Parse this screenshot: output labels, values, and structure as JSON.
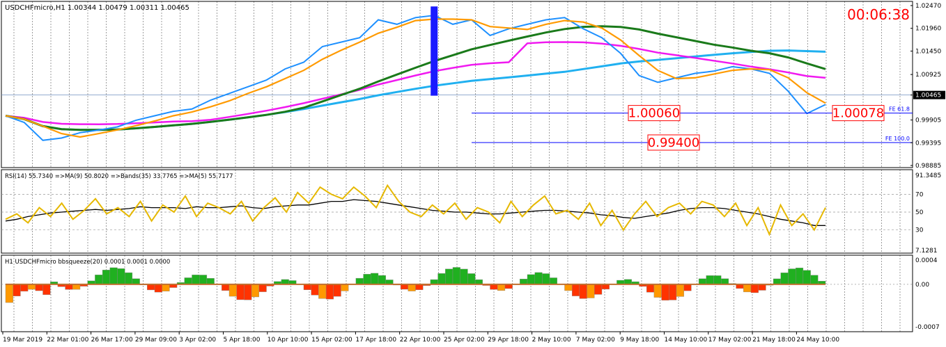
{
  "chart_data": [
    {
      "type": "line",
      "title": "USDCHFmicro,H1  1.00344 1.00479 1.00311 1.00465",
      "timer": "00:06:38",
      "colors": {
        "timer": "#ff0000",
        "price": "#1e90ff",
        "ma_long": "#1a7a1a",
        "ma_mid": "#ee00ee",
        "ma_fast": "#20b0f0",
        "orange": "#ff9a00",
        "fib": "#0000ff"
      },
      "x_labels": [
        "19 Mar 2019",
        "22 Mar 01:00",
        "26 Mar 17:00",
        "29 Mar 09:00",
        "3 Apr 02:00",
        "5 Apr 18:00",
        "10 Apr 10:00",
        "15 Apr 02:00",
        "17 Apr 18:00",
        "22 Apr 10:00",
        "25 Apr 02:00",
        "29 Apr 18:00",
        "2 May 10:00",
        "7 May 02:00",
        "9 May 18:00",
        "14 May 10:00",
        "17 May 02:00",
        "21 May 18:00",
        "24 May 10:00"
      ],
      "y_ticks": [
        "1.02470",
        "1.01960",
        "1.01450",
        "1.00925",
        "1.00465",
        "0.99905",
        "0.99395",
        "0.98885"
      ],
      "ylim": [
        0.98885,
        1.0247
      ],
      "current_price": "1.00465",
      "price_series": [
        1.0,
        0.9985,
        0.9945,
        0.995,
        0.9962,
        0.9968,
        0.9975,
        0.999,
        1.0,
        1.001,
        1.0015,
        1.0035,
        1.005,
        1.0065,
        1.008,
        1.0105,
        1.012,
        1.0155,
        1.0165,
        1.0175,
        1.0215,
        1.0205,
        1.022,
        1.0225,
        1.0205,
        1.0215,
        1.018,
        1.0195,
        1.0205,
        1.0215,
        1.022,
        1.0195,
        1.0175,
        1.014,
        1.009,
        1.0075,
        1.0085,
        1.0095,
        1.01,
        1.011,
        1.0105,
        1.0095,
        1.0055,
        1.0005,
        1.0025
      ],
      "fib_levels": [
        {
          "label": "FE 61.8",
          "value_text": "1.00060",
          "value": 1.0006
        },
        {
          "label": "FE 100.0",
          "value_text": "0.99400",
          "value": 0.994
        }
      ],
      "box_labels": [
        "1.00060",
        "0.99400",
        "1.00078"
      ]
    },
    {
      "type": "line",
      "title": "RSI(14) 55.7340  =>MA(9) 50.8020  =>Bands(35) 33.7765  =>MA(5) 55.7177",
      "y_ticks": [
        "91.3485",
        "70",
        "50",
        "30",
        "7.1281"
      ],
      "ylim": [
        7.1281,
        91.3485
      ],
      "rsi_series": [
        42,
        48,
        38,
        55,
        45,
        60,
        42,
        52,
        65,
        48,
        55,
        45,
        62,
        40,
        58,
        50,
        68,
        45,
        60,
        55,
        48,
        62,
        40,
        55,
        66,
        50,
        72,
        60,
        78,
        70,
        65,
        78,
        68,
        55,
        80,
        62,
        50,
        45,
        58,
        48,
        60,
        42,
        55,
        50,
        38,
        62,
        45,
        58,
        68,
        48,
        52,
        42,
        60,
        35,
        52,
        30,
        48,
        62,
        45,
        55,
        60,
        48,
        62,
        58,
        45,
        60,
        35,
        55,
        25,
        58,
        35,
        48,
        30,
        55
      ],
      "ma_series": [
        40,
        42,
        45,
        47,
        49,
        50,
        51,
        52,
        53,
        52,
        53,
        54,
        56,
        55,
        55,
        55,
        54,
        56,
        55,
        55,
        56,
        57,
        55,
        54,
        56,
        57,
        58,
        58,
        60,
        62,
        62,
        64,
        63,
        62,
        60,
        58,
        56,
        54,
        52,
        51,
        50,
        50,
        49,
        48,
        48,
        49,
        50,
        51,
        52,
        52,
        51,
        50,
        49,
        47,
        46,
        44,
        43,
        45,
        47,
        49,
        52,
        54,
        55,
        55,
        54,
        52,
        50,
        48,
        45,
        42,
        40,
        38,
        35,
        35
      ]
    },
    {
      "type": "bar",
      "title": "H1 USDCHFmicro bbsqueeze(20) 0.0001 0.0001 0.0000",
      "y_ticks": [
        "0.0004",
        "0.00",
        "-0.0007"
      ],
      "ylim": [
        -0.0007,
        0.0004
      ]
    }
  ]
}
